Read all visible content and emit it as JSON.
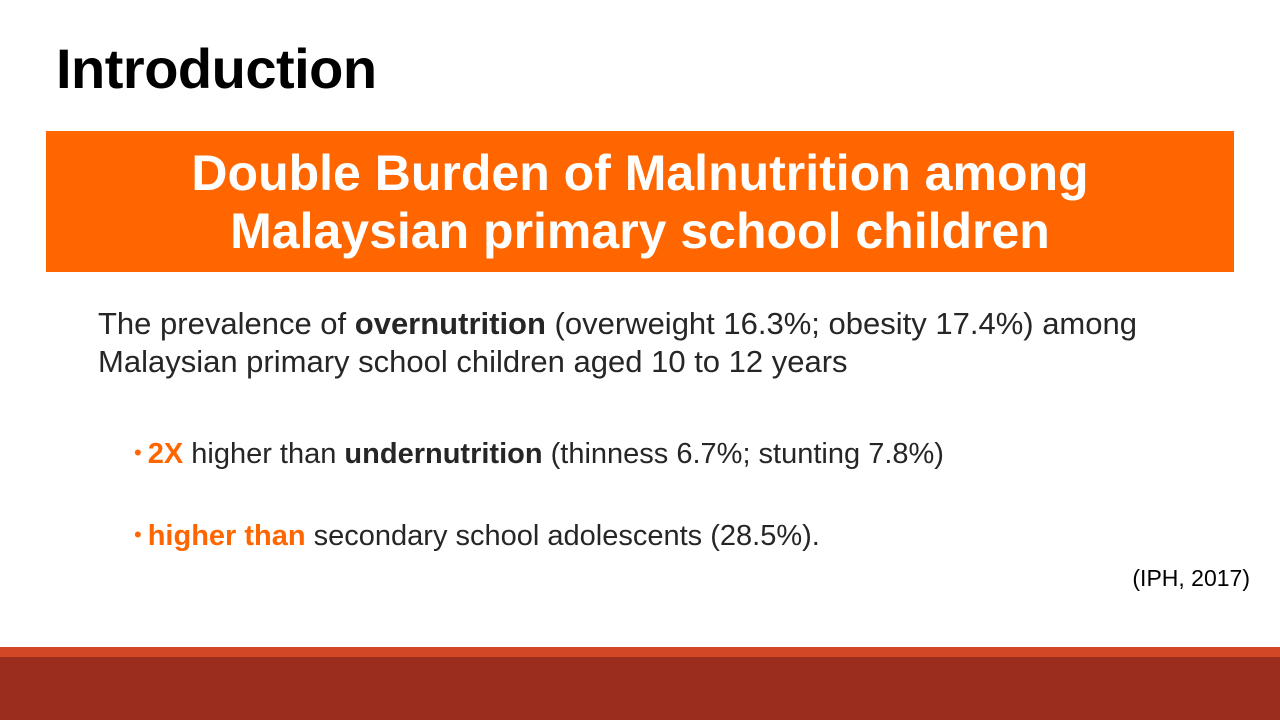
{
  "title": "Introduction",
  "banner": {
    "line1": "Double Burden of Malnutrition among",
    "line2": "Malaysian primary school children"
  },
  "intro": {
    "part1": "The prevalence of ",
    "bold": "overnutrition",
    "part2": " (overweight 16.3%; obesity 17.4%) among Malaysian primary school children aged 10 to 12 years"
  },
  "bullets": [
    {
      "marker": "•",
      "accent": "2X",
      "text1": " higher than ",
      "bold": "undernutrition",
      "text2": " (thinness 6.7%; stunting 7.8%)"
    },
    {
      "marker": "•",
      "accent": "higher than",
      "text1": " secondary school adolescents (28.5%)."
    }
  ],
  "citation": "(IPH, 2017)",
  "colors": {
    "accent": "#ff6600",
    "footer_top": "#d24726",
    "footer_bottom": "#9b2d1f"
  }
}
